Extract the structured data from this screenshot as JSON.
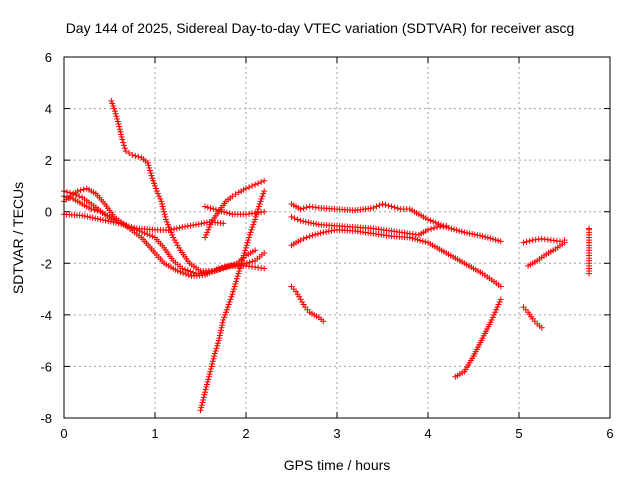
{
  "chart_data": {
    "type": "scatter",
    "title": "Day 144 of 2025, Sidereal Day-to-day VTEC variation (SDTVAR) for receiver ascg",
    "xlabel": "GPS time / hours",
    "ylabel": "SDTVAR / TECUs",
    "xlim": [
      0,
      6
    ],
    "ylim": [
      -8,
      6
    ],
    "xticks": [
      "0",
      "1",
      "2",
      "3",
      "4",
      "5",
      "6"
    ],
    "yticks": [
      "-8",
      "-6",
      "-4",
      "-2",
      "0",
      "2",
      "4",
      "6"
    ],
    "grid": true,
    "marker": "plus",
    "marker_color": "#ff0000",
    "series": [
      {
        "points": [
          [
            0.52,
            4.3
          ],
          [
            0.56,
            3.9
          ],
          [
            0.6,
            3.4
          ],
          [
            0.64,
            2.8
          ],
          [
            0.68,
            2.35
          ],
          [
            0.75,
            2.2
          ],
          [
            0.85,
            2.1
          ],
          [
            0.92,
            1.9
          ],
          [
            0.97,
            1.3
          ],
          [
            1.02,
            0.8
          ],
          [
            1.07,
            0.4
          ],
          [
            1.12,
            -0.3
          ],
          [
            1.2,
            -1.0
          ],
          [
            1.28,
            -1.5
          ],
          [
            1.38,
            -2.0
          ],
          [
            1.5,
            -2.3
          ],
          [
            1.65,
            -2.3
          ],
          [
            1.8,
            -2.1
          ],
          [
            1.95,
            -2.05
          ],
          [
            2.1,
            -1.9
          ],
          [
            2.2,
            -1.6
          ]
        ]
      },
      {
        "points": [
          [
            0.0,
            0.8
          ],
          [
            0.1,
            0.7
          ],
          [
            0.2,
            0.55
          ],
          [
            0.3,
            0.3
          ],
          [
            0.45,
            -0.1
          ],
          [
            0.6,
            -0.4
          ],
          [
            0.8,
            -0.7
          ],
          [
            1.0,
            -1.0
          ],
          [
            1.1,
            -1.4
          ],
          [
            1.2,
            -1.9
          ],
          [
            1.3,
            -2.2
          ],
          [
            1.45,
            -2.4
          ],
          [
            1.6,
            -2.35
          ],
          [
            1.75,
            -2.2
          ],
          [
            1.9,
            -2.0
          ],
          [
            2.0,
            -1.7
          ],
          [
            2.1,
            -1.5
          ]
        ]
      },
      {
        "points": [
          [
            0.0,
            0.4
          ],
          [
            0.15,
            0.8
          ],
          [
            0.25,
            0.9
          ],
          [
            0.35,
            0.7
          ],
          [
            0.45,
            0.3
          ],
          [
            0.55,
            -0.2
          ],
          [
            0.7,
            -0.6
          ],
          [
            0.85,
            -1.0
          ],
          [
            1.0,
            -1.6
          ],
          [
            1.1,
            -2.0
          ],
          [
            1.25,
            -2.3
          ],
          [
            1.4,
            -2.5
          ],
          [
            1.55,
            -2.45
          ],
          [
            1.7,
            -2.2
          ],
          [
            1.85,
            -2.1
          ],
          [
            2.0,
            -2.1
          ],
          [
            2.1,
            -2.15
          ],
          [
            2.2,
            -2.2
          ]
        ]
      },
      {
        "points": [
          [
            0.0,
            -0.1
          ],
          [
            0.2,
            -0.15
          ],
          [
            0.4,
            -0.3
          ],
          [
            0.6,
            -0.45
          ],
          [
            0.8,
            -0.65
          ],
          [
            1.0,
            -0.7
          ],
          [
            1.15,
            -0.72
          ],
          [
            1.3,
            -0.6
          ],
          [
            1.45,
            -0.5
          ],
          [
            1.6,
            -0.4
          ],
          [
            1.75,
            -0.45
          ]
        ]
      },
      {
        "points": [
          [
            0.0,
            0.6
          ],
          [
            0.1,
            0.5
          ],
          [
            0.2,
            0.3
          ],
          [
            0.3,
            0.1
          ],
          [
            0.4,
            0.0
          ],
          [
            0.5,
            -0.2
          ]
        ]
      },
      {
        "points": [
          [
            1.5,
            -7.7
          ],
          [
            1.55,
            -7.0
          ],
          [
            1.6,
            -6.3
          ],
          [
            1.65,
            -5.6
          ],
          [
            1.7,
            -5.0
          ],
          [
            1.75,
            -4.2
          ],
          [
            1.8,
            -3.7
          ],
          [
            1.85,
            -3.2
          ],
          [
            1.9,
            -2.6
          ],
          [
            1.95,
            -2.0
          ],
          [
            2.0,
            -1.4
          ],
          [
            2.05,
            -0.8
          ],
          [
            2.1,
            -0.3
          ],
          [
            2.15,
            0.3
          ],
          [
            2.2,
            0.8
          ]
        ]
      },
      {
        "points": [
          [
            1.55,
            -1.0
          ],
          [
            1.62,
            -0.4
          ],
          [
            1.7,
            0.0
          ],
          [
            1.78,
            0.4
          ],
          [
            1.85,
            0.6
          ],
          [
            1.92,
            0.75
          ],
          [
            2.0,
            0.9
          ],
          [
            2.1,
            1.05
          ],
          [
            2.2,
            1.2
          ]
        ]
      },
      {
        "points": [
          [
            1.55,
            0.2
          ],
          [
            1.7,
            0.05
          ],
          [
            1.85,
            -0.1
          ],
          [
            2.0,
            -0.1
          ],
          [
            2.1,
            -0.05
          ],
          [
            2.2,
            0.0
          ]
        ]
      },
      {
        "points": [
          [
            2.5,
            0.3
          ],
          [
            2.6,
            0.1
          ],
          [
            2.7,
            0.2
          ],
          [
            2.8,
            0.15
          ],
          [
            3.0,
            0.1
          ],
          [
            3.2,
            0.05
          ],
          [
            3.4,
            0.15
          ],
          [
            3.5,
            0.3
          ],
          [
            3.6,
            0.2
          ],
          [
            3.7,
            0.1
          ],
          [
            3.8,
            0.1
          ],
          [
            3.9,
            -0.1
          ],
          [
            4.0,
            -0.3
          ],
          [
            4.2,
            -0.6
          ],
          [
            4.4,
            -0.8
          ],
          [
            4.6,
            -0.95
          ],
          [
            4.8,
            -1.15
          ]
        ]
      },
      {
        "points": [
          [
            2.5,
            -0.2
          ],
          [
            2.6,
            -0.35
          ],
          [
            2.8,
            -0.5
          ],
          [
            3.0,
            -0.55
          ],
          [
            3.2,
            -0.6
          ],
          [
            3.4,
            -0.65
          ],
          [
            3.6,
            -0.75
          ],
          [
            3.8,
            -0.85
          ],
          [
            3.9,
            -0.9
          ],
          [
            4.0,
            -0.7
          ],
          [
            4.1,
            -0.6
          ],
          [
            4.2,
            -0.55
          ]
        ]
      },
      {
        "points": [
          [
            2.5,
            -1.3
          ],
          [
            2.6,
            -1.1
          ],
          [
            2.7,
            -0.95
          ],
          [
            2.85,
            -0.8
          ],
          [
            3.0,
            -0.7
          ],
          [
            3.2,
            -0.75
          ],
          [
            3.4,
            -0.85
          ],
          [
            3.6,
            -0.95
          ],
          [
            3.8,
            -1.0
          ],
          [
            4.0,
            -1.2
          ],
          [
            4.2,
            -1.6
          ],
          [
            4.4,
            -2.0
          ],
          [
            4.6,
            -2.4
          ],
          [
            4.8,
            -2.9
          ]
        ]
      },
      {
        "points": [
          [
            2.5,
            -2.9
          ],
          [
            2.55,
            -3.1
          ],
          [
            2.6,
            -3.4
          ],
          [
            2.65,
            -3.7
          ],
          [
            2.7,
            -3.9
          ],
          [
            2.75,
            -4.0
          ],
          [
            2.8,
            -4.1
          ],
          [
            2.85,
            -4.25
          ]
        ]
      },
      {
        "points": [
          [
            4.3,
            -6.4
          ],
          [
            4.4,
            -6.2
          ],
          [
            4.5,
            -5.6
          ],
          [
            4.6,
            -4.9
          ],
          [
            4.7,
            -4.2
          ],
          [
            4.75,
            -3.8
          ],
          [
            4.8,
            -3.4
          ]
        ]
      },
      {
        "points": [
          [
            5.05,
            -1.2
          ],
          [
            5.15,
            -1.1
          ],
          [
            5.25,
            -1.05
          ],
          [
            5.35,
            -1.1
          ],
          [
            5.45,
            -1.15
          ],
          [
            5.5,
            -1.1
          ]
        ]
      },
      {
        "points": [
          [
            5.1,
            -2.1
          ],
          [
            5.2,
            -1.9
          ],
          [
            5.3,
            -1.65
          ],
          [
            5.4,
            -1.45
          ],
          [
            5.5,
            -1.2
          ]
        ]
      },
      {
        "points": [
          [
            5.05,
            -3.7
          ],
          [
            5.1,
            -3.9
          ],
          [
            5.15,
            -4.15
          ],
          [
            5.2,
            -4.35
          ],
          [
            5.25,
            -4.5
          ]
        ]
      },
      {
        "points": [
          [
            5.77,
            -0.65
          ],
          [
            5.77,
            -0.7
          ],
          [
            5.77,
            -2.2
          ],
          [
            5.77,
            -2.4
          ]
        ]
      }
    ]
  }
}
